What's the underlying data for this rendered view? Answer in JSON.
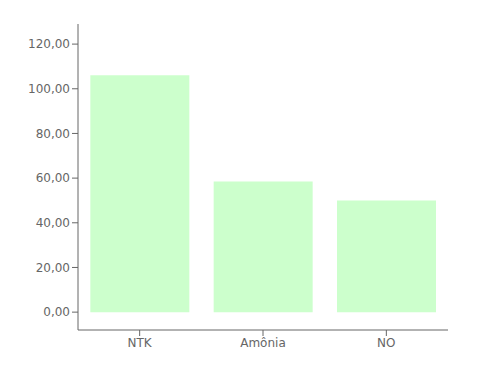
{
  "chart_data": {
    "type": "bar",
    "categories": [
      "NTK",
      "Amônia",
      "NO"
    ],
    "values": [
      106.0,
      58.5,
      50.0
    ],
    "color": "#ccffcc",
    "ylim": [
      -8,
      129
    ],
    "yticks": [
      {
        "value": 0,
        "label": "0,00"
      },
      {
        "value": 20,
        "label": "20,00"
      },
      {
        "value": 40,
        "label": "40,00"
      },
      {
        "value": 60,
        "label": "60,00"
      },
      {
        "value": 80,
        "label": "80,00"
      },
      {
        "value": 100,
        "label": "100,00"
      },
      {
        "value": 120,
        "label": "120,00"
      }
    ],
    "grid": false
  }
}
